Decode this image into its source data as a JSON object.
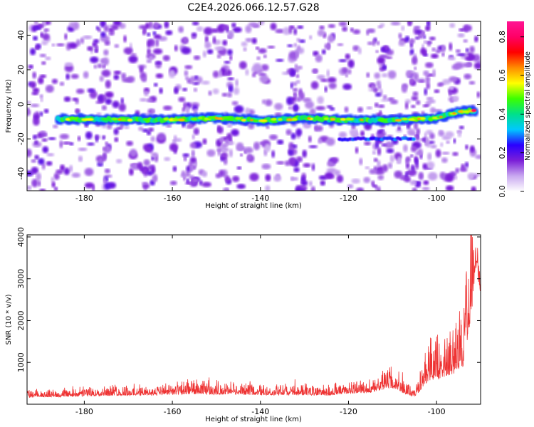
{
  "figure_title": "C2E4.2026.066.12.57.G28",
  "chart_data": [
    {
      "type": "heatmap",
      "name": "spectrogram",
      "xlabel": "Height of straight line (km)",
      "ylabel": "Frequency (Hz)",
      "xlim": [
        -193,
        -90
      ],
      "ylim": [
        -50,
        48
      ],
      "xticks": [
        -180,
        -160,
        -140,
        -120,
        -100
      ],
      "yticks": [
        -40,
        -20,
        0,
        20,
        40
      ],
      "colorbar": {
        "label": "Normalized spectral amplitude",
        "range": [
          0.0,
          0.88
        ],
        "ticks": [
          0.0,
          0.2,
          0.4,
          0.6,
          0.8
        ],
        "stops": [
          "#ffffff",
          "#c9a8f0",
          "#7b1fd8",
          "#2a00ff",
          "#00c8ff",
          "#00e08a",
          "#3cff00",
          "#ffff00",
          "#ff8c00",
          "#ff0000",
          "#ff0066",
          "#ff1493"
        ]
      },
      "trace": {
        "x_start": -186,
        "x_end": -91,
        "freq_start": -8.5,
        "freq_end": -3.5,
        "freq_wiggle": [
          {
            "x": -186,
            "f": -8.5
          },
          {
            "x": -170,
            "f": -8.8
          },
          {
            "x": -160,
            "f": -9.0
          },
          {
            "x": -150,
            "f": -7.8
          },
          {
            "x": -140,
            "f": -9.5
          },
          {
            "x": -130,
            "f": -8.0
          },
          {
            "x": -120,
            "f": -9.0
          },
          {
            "x": -110,
            "f": -9.2
          },
          {
            "x": -100,
            "f": -8.0
          },
          {
            "x": -95,
            "f": -4.5
          },
          {
            "x": -91,
            "f": -3.5
          }
        ],
        "secondary": {
          "x_start": -122,
          "x_end": -105,
          "freq": -20
        }
      }
    },
    {
      "type": "line",
      "name": "snr",
      "xlabel": "Height of straight line (km)",
      "ylabel": "SNR (10 * v/v)",
      "xlim": [
        -193,
        -90
      ],
      "ylim": [
        0,
        4050
      ],
      "xticks": [
        -180,
        -160,
        -140,
        -120,
        -100
      ],
      "yticks": [
        1000,
        2000,
        3000,
        4000
      ],
      "color": "#ee3333",
      "envelope": [
        {
          "x": -193,
          "base": 160,
          "amp": 120
        },
        {
          "x": -175,
          "base": 200,
          "amp": 200
        },
        {
          "x": -165,
          "base": 210,
          "amp": 180
        },
        {
          "x": -155,
          "base": 240,
          "amp": 260
        },
        {
          "x": -140,
          "base": 220,
          "amp": 200
        },
        {
          "x": -125,
          "base": 210,
          "amp": 190
        },
        {
          "x": -115,
          "base": 280,
          "amp": 240
        },
        {
          "x": -110,
          "base": 380,
          "amp": 420
        },
        {
          "x": -107,
          "base": 240,
          "amp": 320
        },
        {
          "x": -105,
          "base": 160,
          "amp": 150
        },
        {
          "x": -102,
          "base": 550,
          "amp": 700
        },
        {
          "x": -97,
          "base": 650,
          "amp": 900
        },
        {
          "x": -94,
          "base": 900,
          "amp": 1400
        },
        {
          "x": -92,
          "base": 2200,
          "amp": 1600
        },
        {
          "x": -91,
          "base": 3300,
          "amp": 800
        },
        {
          "x": -90,
          "base": 2600,
          "amp": 600
        }
      ]
    }
  ]
}
